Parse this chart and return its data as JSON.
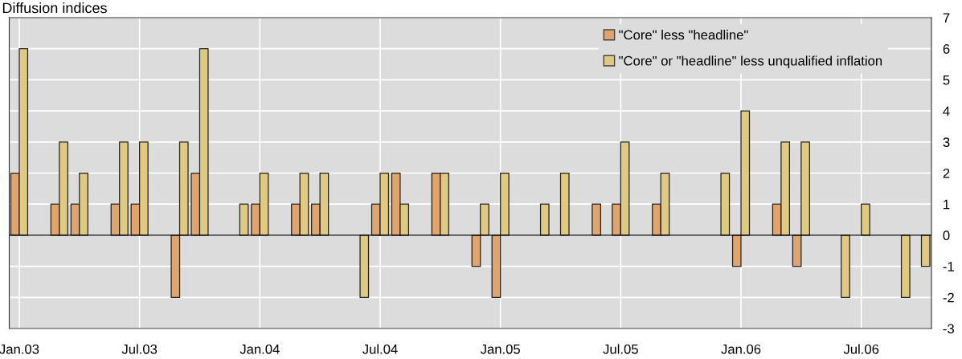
{
  "chart_data": {
    "type": "bar",
    "title": "Diffusion indices",
    "categories": [
      "Jan.03",
      null,
      null,
      null,
      null,
      null,
      "Jul.03",
      null,
      null,
      null,
      null,
      null,
      "Jan.04",
      null,
      null,
      null,
      null,
      null,
      "Jul.04",
      null,
      null,
      null,
      null,
      null,
      "Jan.05",
      null,
      null,
      null,
      null,
      null,
      "Jul.05",
      null,
      null,
      null,
      null,
      null,
      "Jan.06",
      null,
      null,
      null,
      null,
      null,
      "Jul.06",
      null,
      null,
      null
    ],
    "series": [
      {
        "name": "\"Core\" less \"headline\"",
        "color": "#e0a56e",
        "values": [
          2,
          null,
          1,
          1,
          null,
          1,
          1,
          null,
          -2,
          2,
          null,
          null,
          1,
          null,
          1,
          1,
          null,
          null,
          1,
          2,
          null,
          2,
          null,
          -1,
          -2,
          null,
          null,
          null,
          null,
          1,
          1,
          null,
          1,
          null,
          null,
          null,
          -1,
          null,
          1,
          -1,
          null,
          null,
          null,
          null,
          null,
          null
        ]
      },
      {
        "name": "\"Core\" or \"headline\" less unqualified inflation",
        "color": "#e0ca82",
        "values": [
          6,
          null,
          3,
          2,
          null,
          3,
          3,
          null,
          3,
          6,
          null,
          1,
          2,
          null,
          2,
          2,
          null,
          -2,
          2,
          1,
          null,
          2,
          null,
          1,
          2,
          null,
          1,
          2,
          null,
          null,
          3,
          null,
          2,
          null,
          null,
          2,
          4,
          null,
          3,
          3,
          null,
          -2,
          1,
          null,
          -2,
          -1
        ]
      }
    ],
    "ylim": [
      -3,
      7
    ],
    "yticks": [
      -3,
      -2,
      -1,
      0,
      1,
      2,
      3,
      4,
      5,
      6,
      7
    ],
    "grid": true,
    "legend": "top right"
  }
}
